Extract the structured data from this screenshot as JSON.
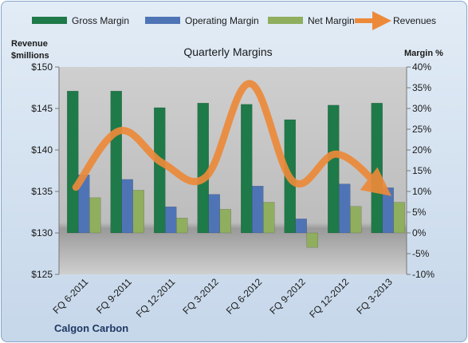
{
  "chart_data": {
    "type": "bar",
    "title": "Quarterly Margins",
    "company": "Calgon Carbon",
    "left_axis_title": [
      "Revenue",
      "$millions"
    ],
    "right_axis_title": "Margin %",
    "categories": [
      "FQ 6-2011",
      "FQ 9-2011",
      "FQ 12-2011",
      "FQ 3-2012",
      "FQ 6-2012",
      "FQ 9-2012",
      "FQ 12-2012",
      "FQ 3-2013"
    ],
    "left_axis": {
      "min": 125,
      "max": 150,
      "step": 5,
      "tick_labels": [
        "$125",
        "$130",
        "$135",
        "$140",
        "$145",
        "$150"
      ]
    },
    "right_axis": {
      "min": -10,
      "max": 40,
      "step": 5,
      "tick_labels": [
        "-10%",
        "-5%",
        "0%",
        "5%",
        "10%",
        "15%",
        "20%",
        "25%",
        "30%",
        "35%",
        "40%"
      ]
    },
    "series": [
      {
        "name": "Gross Margin",
        "axis": "right",
        "kind": "bar",
        "color": "#1e7a48",
        "values": [
          34.2,
          34.2,
          30.2,
          31.3,
          31.0,
          27.3,
          30.8,
          31.3
        ]
      },
      {
        "name": "Operating Margin",
        "axis": "right",
        "kind": "bar",
        "color": "#4f74b6",
        "values": [
          14.0,
          12.9,
          6.3,
          9.3,
          11.3,
          3.4,
          11.8,
          10.9
        ]
      },
      {
        "name": "Net Margin",
        "axis": "right",
        "kind": "bar",
        "color": "#8fae5e",
        "values": [
          8.5,
          10.3,
          3.6,
          5.7,
          7.4,
          -3.5,
          6.4,
          7.4
        ]
      },
      {
        "name": "Revenues",
        "axis": "left",
        "kind": "line",
        "color": "#ec8a3a",
        "values": [
          135.5,
          142.3,
          138.4,
          136.8,
          148.0,
          136.2,
          139.5,
          135.5
        ]
      }
    ],
    "grid": false,
    "legend_position": "top"
  }
}
